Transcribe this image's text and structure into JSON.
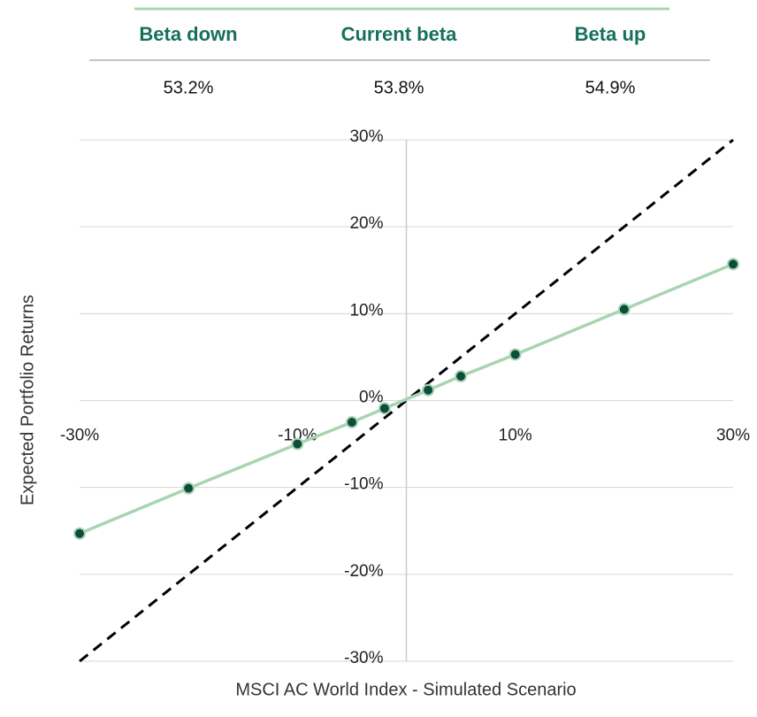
{
  "summary": {
    "headers": [
      "Beta down",
      "Current beta",
      "Beta up"
    ],
    "values": [
      "53.2%",
      "53.8%",
      "54.9%"
    ]
  },
  "chart_data": {
    "type": "line",
    "x_label": "MSCI AC World Index - Simulated Scenario",
    "y_label": "Expected Portfolio Returns",
    "xlim": [
      -30,
      30
    ],
    "ylim": [
      -30,
      30
    ],
    "xticks": [
      {
        "value": -30,
        "label": "-30%"
      },
      {
        "value": -10,
        "label": "-10%"
      },
      {
        "value": 10,
        "label": "10%"
      },
      {
        "value": 30,
        "label": "30%"
      }
    ],
    "yticks": [
      {
        "value": -30,
        "label": "-30%"
      },
      {
        "value": -20,
        "label": "-20%"
      },
      {
        "value": -10,
        "label": "-10%"
      },
      {
        "value": 0,
        "label": "0%"
      },
      {
        "value": 10,
        "label": "10%"
      },
      {
        "value": 20,
        "label": "20%"
      },
      {
        "value": 30,
        "label": "30%"
      }
    ],
    "grid": true,
    "series": [
      {
        "color": "#000000",
        "dashed": true,
        "markers": false,
        "x": [
          -30,
          30
        ],
        "values": [
          -30,
          30
        ]
      },
      {
        "color": "#a8d5b0",
        "marker_color": "#0b4d3f",
        "dashed": false,
        "markers": true,
        "x": [
          -30,
          -20,
          -10,
          -5,
          -2,
          2,
          5,
          10,
          20,
          30
        ],
        "values": [
          -15.3,
          -10.1,
          -5.0,
          -2.5,
          -0.9,
          1.2,
          2.8,
          5.3,
          10.5,
          15.7
        ]
      }
    ]
  }
}
